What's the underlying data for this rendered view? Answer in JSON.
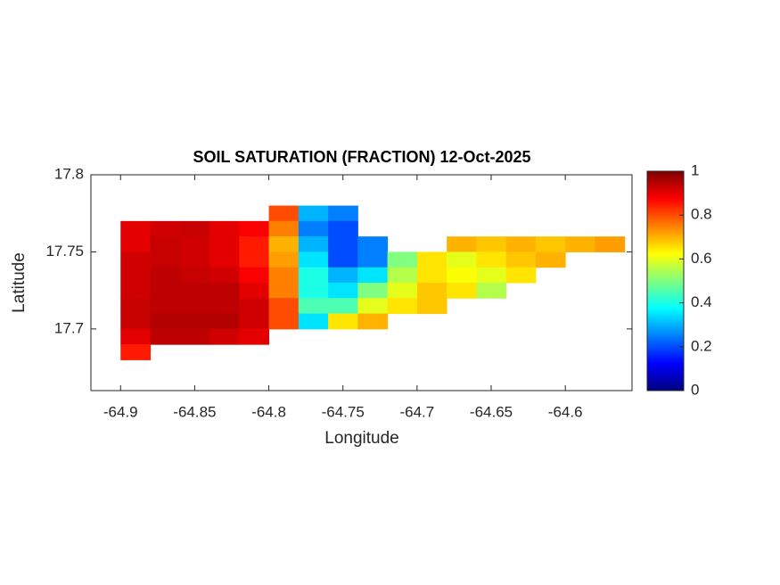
{
  "chart_data": {
    "type": "heatmap",
    "title": "SOIL SATURATION (FRACTION) 12-Oct-2025",
    "xlabel": "Longitude",
    "ylabel": "Latitude",
    "colormap": "jet",
    "xlim": [
      -64.92,
      -64.555
    ],
    "ylim": [
      17.66,
      17.8
    ],
    "xticks": [
      -64.9,
      -64.85,
      -64.8,
      -64.75,
      -64.7,
      -64.65,
      -64.6
    ],
    "yticks": [
      17.7,
      17.75,
      17.8
    ],
    "clim": [
      0,
      1
    ],
    "cticks": [
      0,
      0.2,
      0.4,
      0.6,
      0.8,
      1
    ],
    "x": [
      -64.89,
      -64.87,
      -64.85,
      -64.83,
      -64.81,
      -64.79,
      -64.77,
      -64.75,
      -64.73,
      -64.71,
      -64.69,
      -64.67,
      -64.65,
      -64.63,
      -64.61,
      -64.59,
      -64.57
    ],
    "y": [
      17.775,
      17.765,
      17.755,
      17.745,
      17.735,
      17.725,
      17.715,
      17.705,
      17.695,
      17.685
    ],
    "z": [
      [
        null,
        null,
        null,
        null,
        null,
        0.8,
        0.3,
        0.25,
        null,
        null,
        null,
        null,
        null,
        null,
        null,
        null,
        null
      ],
      [
        0.9,
        0.92,
        0.93,
        0.9,
        0.88,
        0.75,
        0.25,
        0.2,
        null,
        null,
        null,
        null,
        null,
        null,
        null,
        null,
        null
      ],
      [
        0.9,
        0.93,
        0.92,
        0.9,
        0.85,
        0.7,
        0.3,
        0.2,
        0.25,
        null,
        null,
        0.7,
        0.68,
        0.7,
        0.68,
        0.7,
        0.72
      ],
      [
        0.92,
        0.93,
        0.92,
        0.9,
        0.85,
        0.72,
        0.35,
        0.2,
        0.25,
        0.5,
        0.65,
        0.6,
        0.65,
        0.68,
        0.7,
        null,
        null
      ],
      [
        0.92,
        0.94,
        0.93,
        0.92,
        0.88,
        0.75,
        0.4,
        0.3,
        0.35,
        0.55,
        0.65,
        0.62,
        0.6,
        0.65,
        null,
        null,
        null
      ],
      [
        0.92,
        0.94,
        0.94,
        0.94,
        0.9,
        0.75,
        0.4,
        0.35,
        0.5,
        0.6,
        0.68,
        0.65,
        0.55,
        null,
        null,
        null,
        null
      ],
      [
        0.93,
        0.94,
        0.94,
        0.94,
        0.92,
        0.8,
        0.45,
        0.45,
        0.6,
        0.65,
        0.68,
        null,
        null,
        null,
        null,
        null,
        null
      ],
      [
        0.93,
        0.95,
        0.95,
        0.95,
        0.92,
        0.8,
        0.35,
        0.65,
        0.7,
        null,
        null,
        null,
        null,
        null,
        null,
        null,
        null
      ],
      [
        0.9,
        0.94,
        0.94,
        0.92,
        0.9,
        null,
        null,
        null,
        null,
        null,
        null,
        null,
        null,
        null,
        null,
        null,
        null
      ],
      [
        0.85,
        null,
        null,
        null,
        null,
        null,
        null,
        null,
        null,
        null,
        null,
        null,
        null,
        null,
        null,
        null,
        null
      ]
    ]
  }
}
